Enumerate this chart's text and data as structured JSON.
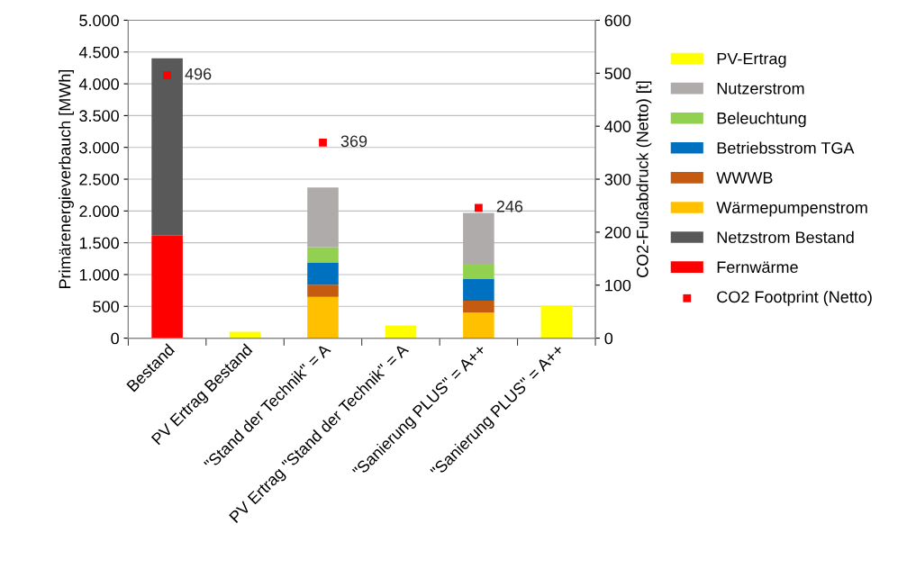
{
  "chart_data": {
    "type": "bar",
    "stacked": true,
    "ylabel": "Primärenergieverbauch [MWh]",
    "y2label": "CO2-Fußabdruck (Netto) [t]",
    "categories": [
      "Bestand",
      "PV Ertrag Bestand",
      "\"Stand der Technik\" = A",
      "PV Ertrag \"Stand der Technik\" = A",
      "\"Sanierung PLUS\" = A++",
      "\"Sanierung PLUS\" = A++"
    ],
    "series": [
      {
        "name": "Fernwärme",
        "color": "#ff0000",
        "values": [
          1610,
          null,
          null,
          null,
          null,
          null
        ]
      },
      {
        "name": "Netzstrom Bestand",
        "color": "#595959",
        "values": [
          2790,
          null,
          null,
          null,
          null,
          null
        ]
      },
      {
        "name": "Wärmepumpenstrom",
        "color": "#ffc000",
        "values": [
          null,
          null,
          650,
          null,
          400,
          null
        ]
      },
      {
        "name": "WWWB",
        "color": "#c55a11",
        "values": [
          null,
          null,
          190,
          null,
          190,
          null
        ]
      },
      {
        "name": "Betriebsstrom TGA",
        "color": "#0070c0",
        "values": [
          null,
          null,
          350,
          null,
          340,
          null
        ]
      },
      {
        "name": "Beleuchtung",
        "color": "#92d050",
        "values": [
          null,
          null,
          240,
          null,
          240,
          null
        ]
      },
      {
        "name": "Nutzerstrom",
        "color": "#afabab",
        "values": [
          null,
          null,
          940,
          null,
          800,
          null
        ]
      },
      {
        "name": "PV-Ertrag",
        "color": "#ffff00",
        "values": [
          null,
          100,
          null,
          200,
          null,
          510
        ]
      },
      {
        "name": "CO2 Footprint (Netto)",
        "type": "scatter",
        "axis": "y2",
        "color": "#ff0000",
        "values": [
          496,
          null,
          369,
          null,
          246,
          null
        ],
        "value_labels": [
          "496",
          null,
          "369",
          null,
          "246",
          null
        ]
      }
    ],
    "ylim": [
      0,
      5000
    ],
    "yticks": [
      0,
      {
        "value": 500,
        "label": "500"
      },
      {
        "value": 1000,
        "label": "1.000"
      },
      {
        "value": 1500,
        "label": "1.500"
      },
      {
        "value": 2000,
        "label": "2.000"
      },
      {
        "value": 2500,
        "label": "2.500"
      },
      {
        "value": 3000,
        "label": "3.000"
      },
      {
        "value": 3500,
        "label": "3.500"
      },
      {
        "value": 4000,
        "label": "4.000"
      },
      {
        "value": 4500,
        "label": "4.500"
      },
      {
        "value": 5000,
        "label": "5.000"
      }
    ],
    "y2lim": [
      0,
      600
    ],
    "y2ticks": [
      0,
      100,
      200,
      300,
      400,
      500,
      600
    ],
    "grid": "y",
    "legend": "right"
  }
}
